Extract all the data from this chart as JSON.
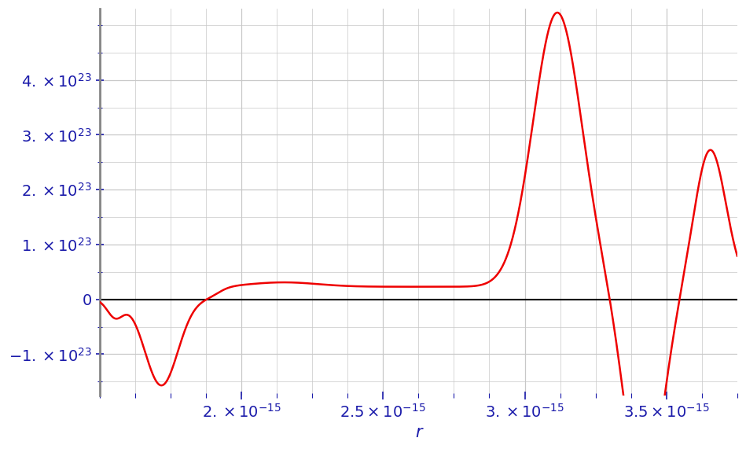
{
  "xlabel": "r",
  "line_color": "#ee0000",
  "background_color": "#ffffff",
  "grid_color": "#c8c8c8",
  "xlim": [
    1.5e-15,
    3.75e-15
  ],
  "ylim": [
    -1.75e+23,
    5.3e+23
  ],
  "xticks": [
    2e-15,
    2.5e-15,
    3e-15,
    3.5e-15
  ],
  "yticks": [
    -1e+23,
    0,
    1e+23,
    2e+23,
    3e+23,
    4e+23
  ],
  "tick_label_color": "#1a1aaa",
  "spine_color": "#888888",
  "line_width": 1.8
}
